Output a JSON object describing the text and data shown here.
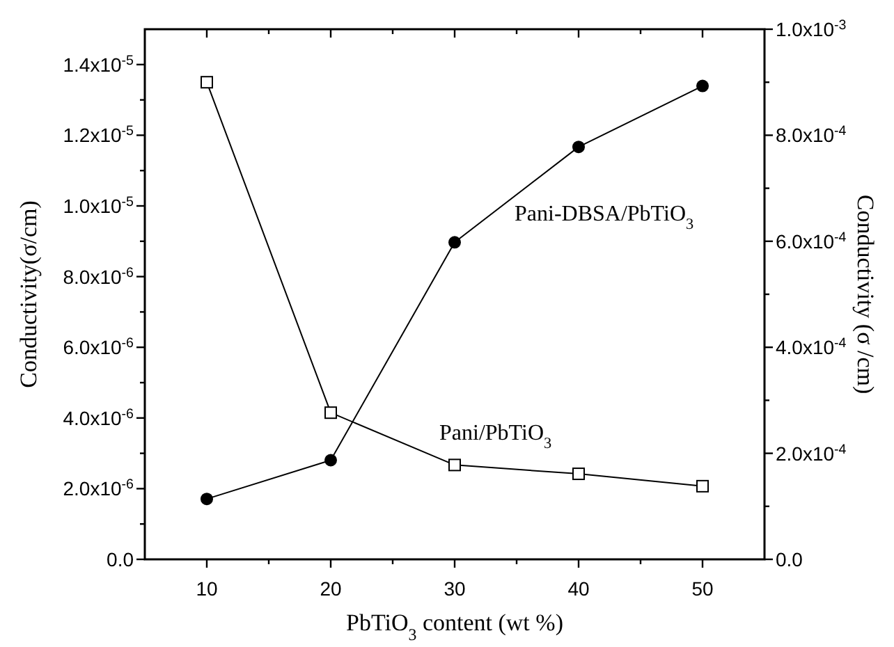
{
  "chart_data": {
    "type": "line",
    "xlabel": "PbTiO$_{3}$ content (wt %)",
    "ylabel": "Conductivity(σ/cm)",
    "y2label": "Conductivity (σ /cm)",
    "x": [
      10,
      20,
      30,
      40,
      50
    ],
    "series": [
      {
        "name": "Pani/PbTiO$_{3}$",
        "color": "#000000",
        "marker": "square",
        "values": [
          1.35e-05,
          4.15e-06,
          2.67e-06,
          2.42e-06,
          2.07e-06
        ]
      },
      {
        "name": "Pani-DBSA/PbTiO$_{3}$",
        "color": "#000000",
        "marker": "circle",
        "axis": "y2",
        "values": [
          0.000114,
          0.000187,
          0.000598,
          0.000778,
          0.000893
        ]
      }
    ],
    "xlim": [
      5,
      55
    ],
    "xticks": [
      10,
      {
        "value": 15,
        "label": null
      },
      20,
      {
        "value": 25,
        "label": null
      },
      30,
      {
        "value": 35,
        "label": null
      },
      40,
      {
        "value": 45,
        "label": null
      },
      50
    ],
    "ylim": [
      0,
      1.5e-05
    ],
    "yticks": [
      {
        "value": 0,
        "label": "0.0"
      },
      {
        "value": 1e-06,
        "label": null
      },
      {
        "value": 2e-06,
        "label": "2.0x10$^{-6}$"
      },
      {
        "value": 3e-06,
        "label": null
      },
      {
        "value": 4e-06,
        "label": "4.0x10$^{-6}$"
      },
      {
        "value": 5e-06,
        "label": null
      },
      {
        "value": 6e-06,
        "label": "6.0x10$^{-6}$"
      },
      {
        "value": 7e-06,
        "label": null
      },
      {
        "value": 8e-06,
        "label": "8.0x10$^{-6}$"
      },
      {
        "value": 9e-06,
        "label": null
      },
      {
        "value": 1e-05,
        "label": "1.0x10$^{-5}$"
      },
      {
        "value": 1.1e-05,
        "label": null
      },
      {
        "value": 1.2e-05,
        "label": "1.2x10$^{-5}$"
      },
      {
        "value": 1.3e-05,
        "label": null
      },
      {
        "value": 1.4e-05,
        "label": "1.4x10$^{-5}$"
      }
    ],
    "y2lim": [
      0,
      0.001
    ],
    "y2ticks": [
      {
        "value": 0,
        "label": "0.0"
      },
      {
        "value": 0.0001,
        "label": null
      },
      {
        "value": 0.0002,
        "label": "2.0x10$^{-4}$"
      },
      {
        "value": 0.0003,
        "label": null
      },
      {
        "value": 0.0004,
        "label": "4.0x10$^{-4}$"
      },
      {
        "value": 0.0005,
        "label": null
      },
      {
        "value": 0.0006,
        "label": "6.0x10$^{-4}$"
      },
      {
        "value": 0.0007,
        "label": null
      },
      {
        "value": 0.0008,
        "label": "8.0x10$^{-4}$"
      },
      {
        "value": 0.0009,
        "label": null
      },
      {
        "value": 0.001,
        "label": "1.0x10$^{-3}$"
      }
    ],
    "grid": false
  }
}
